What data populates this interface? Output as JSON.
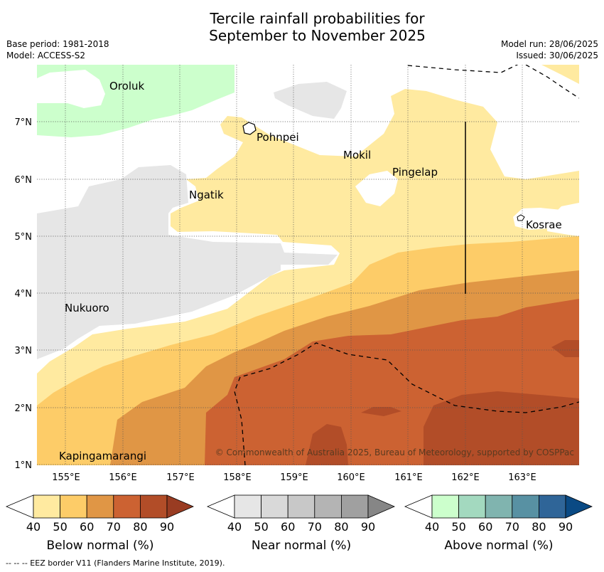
{
  "title": {
    "line1": "Tercile rainfall probabilities for",
    "line2": "September to November 2025"
  },
  "meta": {
    "base_period": "Base period: 1981-2018",
    "model": "Model: ACCESS-S2",
    "model_run": "Model run: 28/06/2025",
    "issued": "Issued: 30/06/2025"
  },
  "map": {
    "longitude_labels": [
      "155°E",
      "156°E",
      "157°E",
      "158°E",
      "159°E",
      "160°E",
      "161°E",
      "162°E",
      "163°E"
    ],
    "latitude_labels": [
      "7°N",
      "6°N",
      "5°N",
      "4°N",
      "3°N",
      "2°N",
      "1°N"
    ],
    "places": [
      "Oroluk",
      "Pohnpei",
      "Mokil",
      "Pingelap",
      "Ngatik",
      "Kosrae",
      "Nukuoro",
      "Kapingamarangi"
    ],
    "copyright": "© Commonwealth of Australia 2025, Bureau of Meteorology, supported by COSPPac"
  },
  "legend": {
    "tick_labels": [
      "40",
      "50",
      "60",
      "70",
      "80",
      "90"
    ],
    "below": {
      "title": "Below normal (%)",
      "colors": [
        "#ffffff",
        "#ffeaa0",
        "#fdcc68",
        "#e09645",
        "#cc6232",
        "#b24d28",
        "#993c22"
      ]
    },
    "near": {
      "title": "Near normal (%)",
      "colors": [
        "#ffffff",
        "#e6e6e6",
        "#d9d9d9",
        "#c8c8c8",
        "#b4b4b4",
        "#a0a0a0",
        "#868686"
      ]
    },
    "above": {
      "title": "Above normal (%)",
      "colors": [
        "#ffffff",
        "#ccffcc",
        "#a3d9bf",
        "#80b4af",
        "#5891a3",
        "#2f6598",
        "#0a4a84"
      ]
    }
  },
  "footnote": "--  --  -- EEZ border V11 (Flanders Marine Institute, 2019)."
}
